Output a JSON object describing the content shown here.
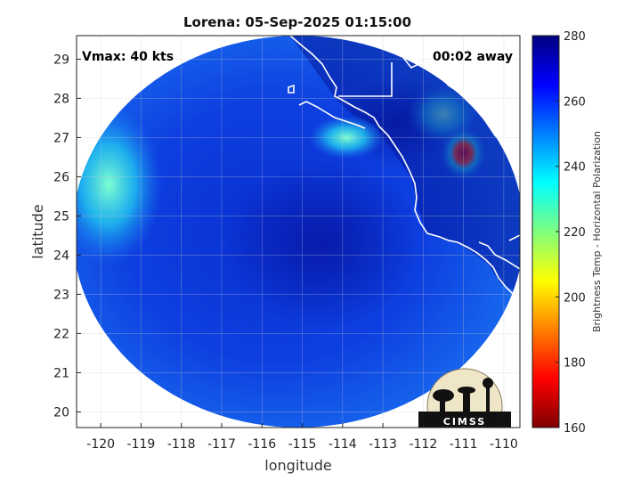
{
  "chart_data": {
    "type": "heatmap",
    "title": "Lorena: 05-Sep-2025 01:15:00",
    "xlabel": "longitude",
    "ylabel": "latitude",
    "xlim": [
      -120.6,
      -109.6
    ],
    "ylim": [
      19.6,
      29.6
    ],
    "x_ticks": [
      -120,
      -119,
      -118,
      -117,
      -116,
      -115,
      -114,
      -113,
      -112,
      -111,
      -110
    ],
    "y_ticks": [
      20,
      21,
      22,
      23,
      24,
      25,
      26,
      27,
      28,
      29
    ],
    "grid": true,
    "colorbar": {
      "label": "Brightness Temp - Horizontal Polarization",
      "range": [
        160,
        280
      ],
      "ticks": [
        160,
        180,
        200,
        220,
        240,
        260,
        280
      ],
      "colormap": "jet"
    },
    "annotations": {
      "vmax": "Vmax: 40 kts",
      "time_offset": "00:02 away"
    },
    "swath": {
      "center_lon": -115.1,
      "center_lat": 24.6,
      "radius_lon": 5.6,
      "radius_lat": 5.0
    },
    "features": [
      {
        "name": "background",
        "lon": -115.0,
        "lat": 24.5,
        "value": 258
      },
      {
        "name": "cold-west-edge",
        "lon": -119.8,
        "lat": 25.8,
        "value": 240
      },
      {
        "name": "storm-center",
        "lon": -114.5,
        "lat": 24.3,
        "value": 266
      },
      {
        "name": "peninsula-land",
        "lon": -112.6,
        "lat": 27.4,
        "value": 270
      },
      {
        "name": "cold-band-1",
        "lon": -113.9,
        "lat": 27.0,
        "value": 240
      },
      {
        "name": "cold-band-2",
        "lon": -111.5,
        "lat": 27.6,
        "value": 238
      },
      {
        "name": "warm-max",
        "lon": -111.0,
        "lat": 26.6,
        "value": 180
      }
    ],
    "logo_text": "CIMSS"
  }
}
